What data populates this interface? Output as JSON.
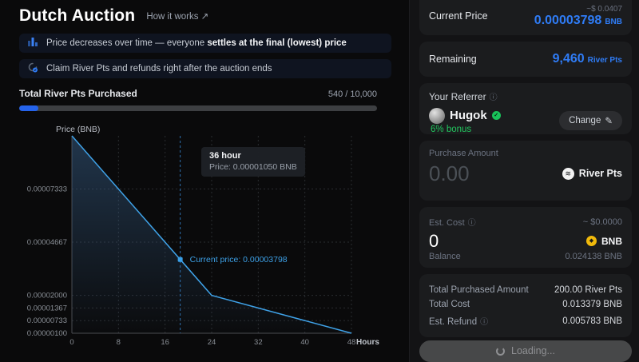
{
  "header": {
    "title": "Dutch Auction",
    "how_it_works": "How it works ↗",
    "info_items": [
      {
        "icon": "bar-chart-icon",
        "text_before": "Price decreases over time — everyone ",
        "text_bold": "settles at the final (lowest) price"
      },
      {
        "icon": "claim-refund-icon",
        "text_before": "Claim River Pts and refunds right after the auction ends",
        "text_bold": ""
      }
    ]
  },
  "progress": {
    "label": "Total River Pts Purchased",
    "value_text": "540 / 10,000",
    "percent": 5.4
  },
  "chart_data": {
    "type": "area",
    "ylabel": "Price (BNB)",
    "xlabel": "Hours",
    "xlim": [
      0,
      48
    ],
    "ylim": [
      1e-06,
      0.0001
    ],
    "x_ticks": [
      0,
      8,
      16,
      24,
      32,
      40,
      48
    ],
    "y_ticks": [
      7.333e-05,
      4.667e-05,
      2e-05,
      1.367e-05,
      7.33e-06,
      1e-06
    ],
    "y_tick_labels": [
      "0.00007333",
      "0.00004667",
      "0.00002000",
      "0.00001367",
      "0.00000733",
      "0.00000100"
    ],
    "series": [
      {
        "name": "price",
        "x": [
          0,
          24,
          48
        ],
        "y": [
          0.0001,
          2e-05,
          1e-06
        ]
      }
    ],
    "current_point": {
      "x": 18.6,
      "y": 3.798e-05,
      "label": "Current price: 0.00003798"
    },
    "tooltip": {
      "title": "36 hour",
      "text": "Price: 0.00001050 BNB"
    },
    "line_color": "#3fa2e8",
    "grid": true,
    "legend": "none"
  },
  "panel": {
    "current_price": {
      "label": "Current Price",
      "usd": "~$ 0.0407",
      "value": "0.00003798",
      "unit": "BNB"
    },
    "remaining": {
      "label": "Remaining",
      "value": "9,460",
      "unit": "River Pts"
    },
    "referrer": {
      "label": "Your Referrer",
      "name": "Hugok",
      "bonus": "6% bonus",
      "change_label": "Change"
    },
    "purchase": {
      "label": "Purchase Amount",
      "value": "0.00",
      "token": "River Pts"
    },
    "est_cost": {
      "label": "Est. Cost",
      "usd": "~ $0.0000",
      "value": "0",
      "token": "BNB",
      "balance_label": "Balance",
      "balance_value": "0.024138 BNB"
    },
    "summary": {
      "rows": [
        {
          "label": "Total Purchased Amount",
          "value": "200.00 River Pts"
        },
        {
          "label": "Total Cost",
          "value": "0.013379 BNB"
        },
        {
          "label": "Est. Refund",
          "value": "0.005783 BNB"
        }
      ]
    },
    "action": {
      "label": "Loading..."
    }
  },
  "icons": {
    "info": "ⓘ",
    "pencil": "✎",
    "check": "✓",
    "river_wave": "≋",
    "bnb_diamond": "◆"
  },
  "colors": {
    "accent_blue": "#2f7cf6",
    "chart_blue": "#3fa2e8",
    "green": "#22c55e",
    "bnb_yellow": "#F0B90B"
  }
}
